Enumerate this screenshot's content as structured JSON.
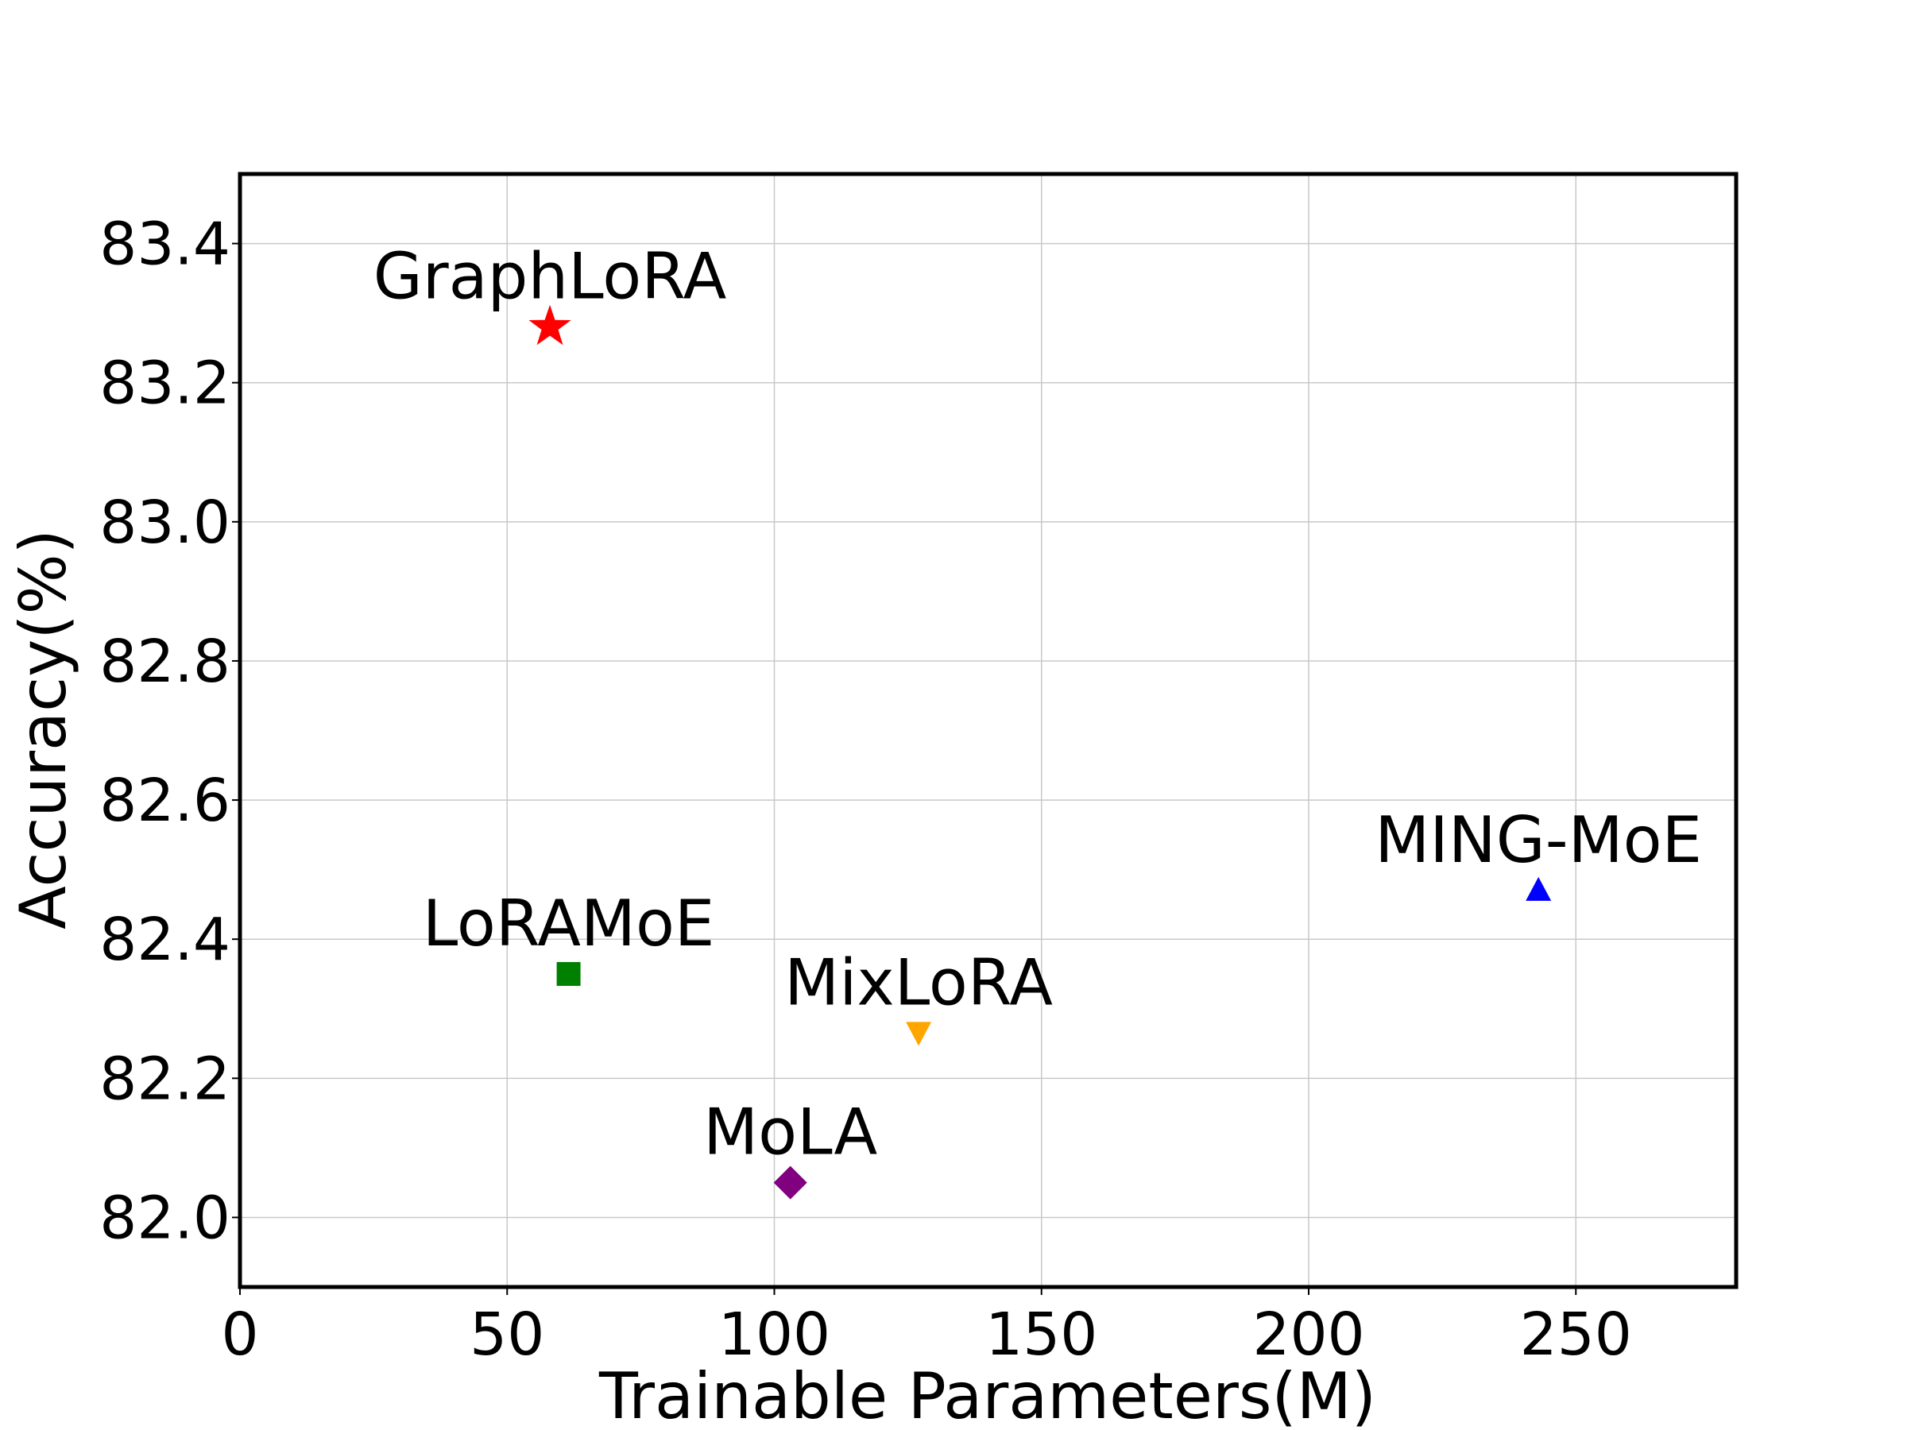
{
  "chart_data": {
    "type": "scatter",
    "title": "",
    "xlabel": "Trainable Parameters(M)",
    "ylabel": "Accuracy(%)",
    "xlim": [
      0,
      280
    ],
    "ylim": [
      81.9,
      83.5
    ],
    "xticks": [
      0,
      50,
      100,
      150,
      200,
      250
    ],
    "yticks": [
      "82.0",
      "82.2",
      "82.4",
      "82.6",
      "82.8",
      "83.0",
      "83.2",
      "83.4"
    ],
    "grid": true,
    "legend": "none",
    "points": [
      {
        "label": "GraphLoRA",
        "x": 58,
        "y": 83.28,
        "marker": "star",
        "color": "#ff0000"
      },
      {
        "label": "LoRAMoE",
        "x": 61.5,
        "y": 82.35,
        "marker": "square",
        "color": "#008000"
      },
      {
        "label": "MixLoRA",
        "x": 127,
        "y": 82.265,
        "marker": "triangle-down",
        "color": "#ffa500"
      },
      {
        "label": "MoLA",
        "x": 103,
        "y": 82.05,
        "marker": "diamond",
        "color": "#800080"
      },
      {
        "label": "MING-MoE",
        "x": 243,
        "y": 82.47,
        "marker": "triangle-up",
        "color": "#0000ff"
      }
    ]
  }
}
